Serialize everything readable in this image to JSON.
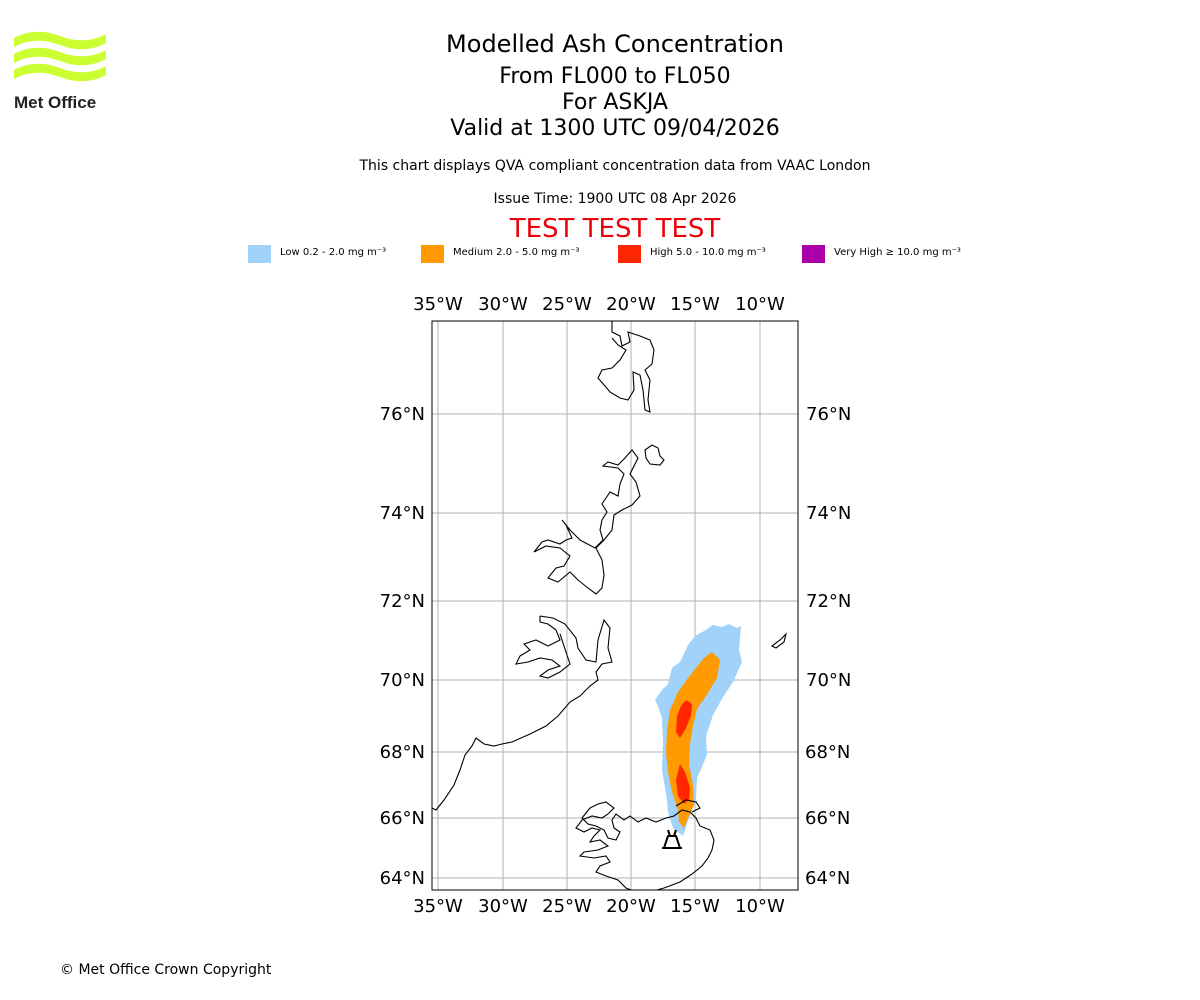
{
  "header": {
    "logo_text": "Met Office",
    "title": "Modelled Ash Concentration",
    "subtitle_levels": "From FL000 to FL050",
    "subtitle_volcano": "For ASKJA",
    "subtitle_valid": "Valid at 1300 UTC 09/04/2026",
    "note": "This chart displays QVA compliant concentration data from VAAC London",
    "issue_time": "Issue Time: 1900 UTC 08 Apr 2026",
    "test_banner": "TEST TEST TEST",
    "test_color": "#e8000b"
  },
  "legend": [
    {
      "label": "Low 0.2 - 2.0 mg m⁻³",
      "color": "#a0d2fa"
    },
    {
      "label": "Medium 2.0 - 5.0 mg m⁻³",
      "color": "#ff9a00"
    },
    {
      "label": "High 5.0 - 10.0 mg m⁻³",
      "color": "#ff2600"
    },
    {
      "label": "Very High  ≥  10.0 mg m⁻³",
      "color": "#aa00aa"
    }
  ],
  "map": {
    "lon_ticks": [
      "35°W",
      "30°W",
      "25°W",
      "20°W",
      "15°W",
      "10°W"
    ],
    "lat_ticks": [
      "76°N",
      "74°N",
      "72°N",
      "70°N",
      "68°N",
      "66°N",
      "64°N"
    ],
    "volcano_marker": "volcano-icon",
    "coast_color": "#000000",
    "grid_color": "#b0b0b0"
  },
  "footer": {
    "copyright": "© Met Office Crown Copyright"
  }
}
